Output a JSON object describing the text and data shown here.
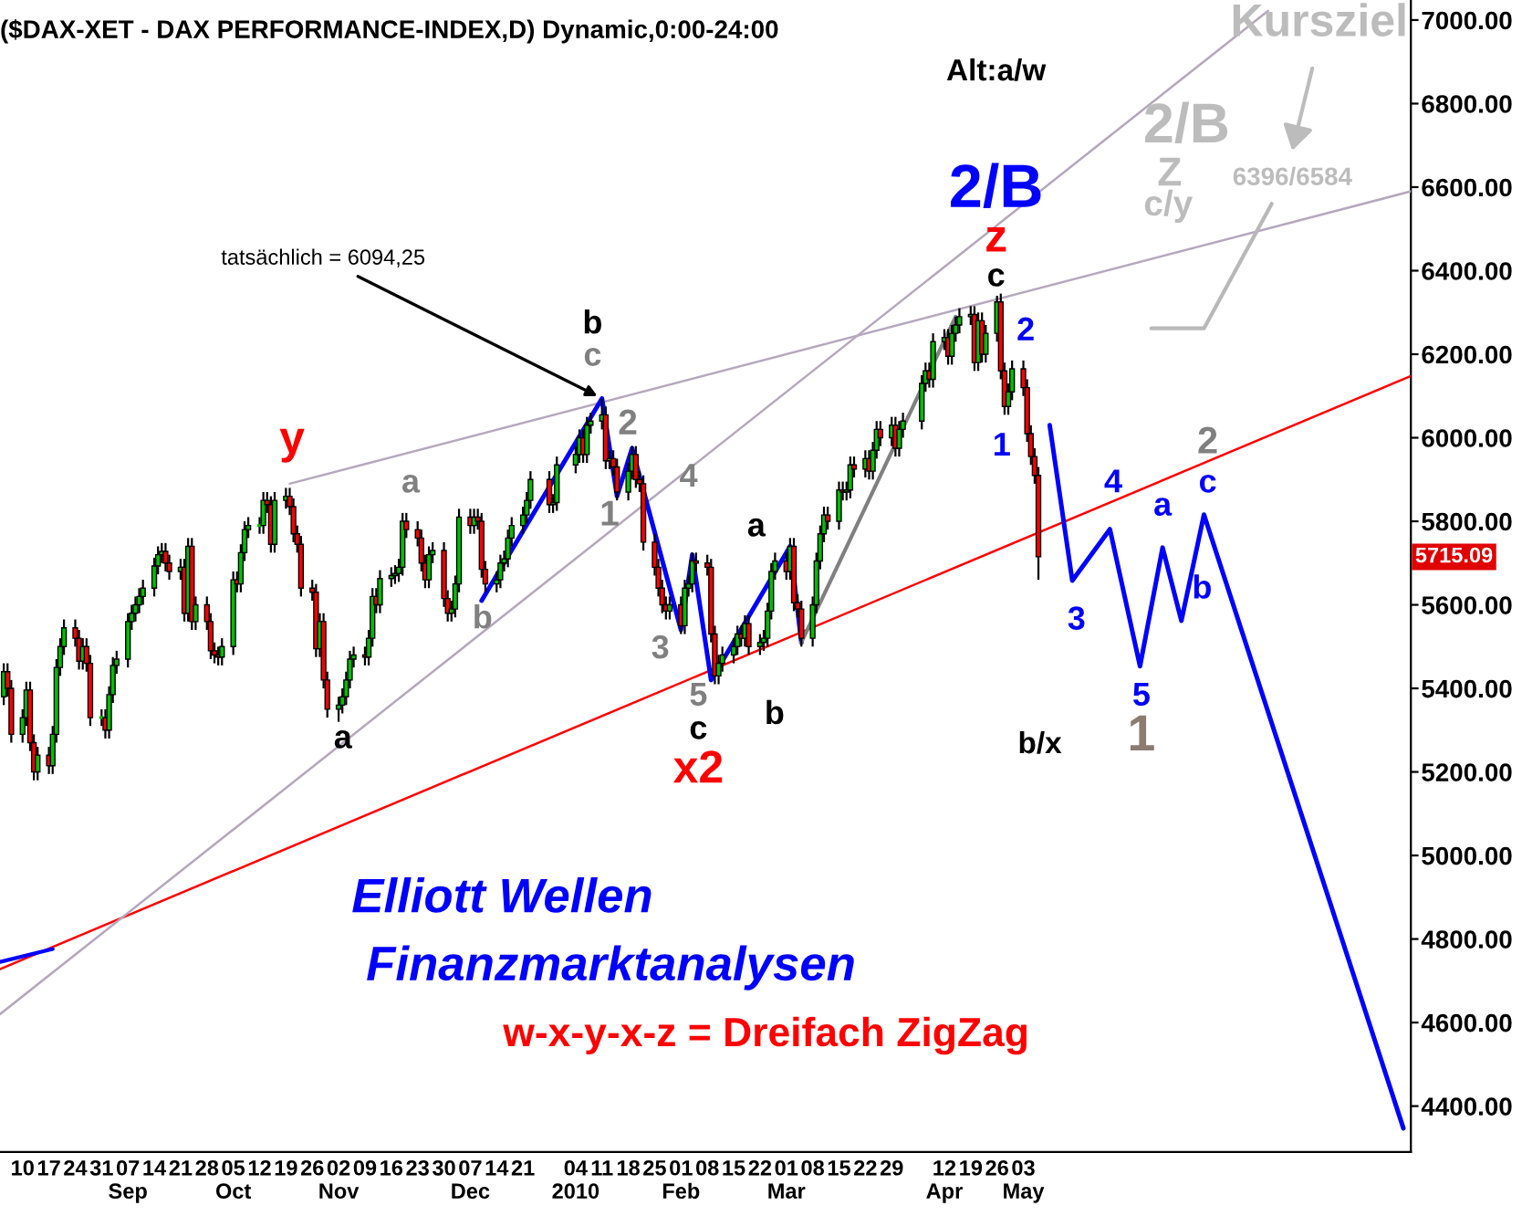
{
  "chart_data": {
    "type": "candlestick",
    "title": "($DAX-XET - DAX PERFORMANCE-INDEX,D) Dynamic,0:00-24:00",
    "colors": [
      "#00c000",
      "#ff0000",
      "#ff0000",
      "#00c000",
      "#00c000",
      "#ff0000",
      "#ff0000",
      "#00c000",
      "#ff0000",
      "#00c000",
      "#00c000",
      "#00c000",
      "#00c000",
      "#ff0000",
      "#ff0000",
      "#00c000",
      "#ff0000",
      "#ff0000",
      "#00c000",
      "#ff0000",
      "#00c000",
      "#00c000",
      "#00c000",
      "#00c000",
      "#00c000",
      "#00c000",
      "#00c000",
      "#00c000",
      "#00c000",
      "#00c000",
      "#00c000",
      "#ff0000",
      "#ff0000",
      "#00c000",
      "#ff0000",
      "#00c000",
      "#ff0000",
      "#00c000",
      "#ff0000",
      "#ff0000",
      "#ff0000",
      "#ff0000",
      "#00c000",
      "#00c000",
      "#ff0000",
      "#00c000",
      "#00c000",
      "#00c000",
      "#00c000",
      "#00c000",
      "#ff0000",
      "#ff0000",
      "#00c000",
      "#00c000",
      "#ff0000",
      "#ff0000",
      "#ff0000",
      "#ff0000",
      "#ff0000",
      "#ff0000",
      "#00c000",
      "#ff0000",
      "#ff0000",
      "#00c000",
      "#00c000",
      "#00c000",
      "#00c000",
      "#00c000",
      "#ff0000",
      "#00c000",
      "#00c000",
      "#ff0000",
      "#00c000",
      "#00c000",
      "#00c000",
      "#00c000",
      "#00c000",
      "#ff0000",
      "#ff0000",
      "#ff0000",
      "#ff0000",
      "#00c000",
      "#00c000",
      "#ff0000",
      "#ff0000",
      "#00c000",
      "#00c000",
      "#00c000",
      "#ff0000",
      "#00c000",
      "#ff0000",
      "#ff0000",
      "#ff0000",
      "#00c000",
      "#00c000",
      "#00c000",
      "#00c000",
      "#00c000",
      "#00c000",
      "#00c000",
      "#00c000",
      "#ff0000",
      "#00c000",
      "#00c000",
      "#00c000",
      "#00c000",
      "#ff0000",
      "#00c000",
      "#00c000",
      "#00c000",
      "#ff0000",
      "#00c000",
      "#ff0000",
      "#ff0000",
      "#00c000",
      "#00c000",
      "#ff0000",
      "#ff0000",
      "#ff0000",
      "#ff0000",
      "#ff0000",
      "#ff0000",
      "#ff0000",
      "#00c000",
      "#ff0000",
      "#00c000",
      "#00c000",
      "#00c000",
      "#ff0000",
      "#ff0000",
      "#ff0000",
      "#ff0000",
      "#00c000",
      "#00c000",
      "#00c000",
      "#00c000",
      "#ff0000",
      "#00c000",
      "#ff0000",
      "#00c000",
      "#00c000",
      "#00c000",
      "#00c000",
      "#00c000",
      "#ff0000",
      "#00c000",
      "#ff0000",
      "#ff0000",
      "#ff0000",
      "#00c000",
      "#00c000",
      "#00c000",
      "#00c000",
      "#ff0000",
      "#00c000",
      "#ff0000",
      "#00c000",
      "#00c000",
      "#ff0000",
      "#00c000",
      "#ff0000",
      "#00c000",
      "#00c000",
      "#ff0000",
      "#00c000",
      "#ff0000",
      "#00c000",
      "#00c000",
      "#00c000",
      "#00c000",
      "#ff0000",
      "#00c000",
      "#00c000",
      "#ff0000",
      "#00c000",
      "#00c000",
      "#00c000",
      "#00c000",
      "#ff0000",
      "#00c000",
      "#ff0000",
      "#00c000",
      "#00c000",
      "#ff0000",
      "#ff0000",
      "#00c000",
      "#00c000",
      "#ff0000",
      "#ff0000",
      "#ff0000",
      "#ff0000",
      "#ff0000"
    ],
    "x": [
      "2009-08-05",
      "2009-08-06",
      "2009-08-07",
      "2009-08-10",
      "2009-08-11",
      "2009-08-12",
      "2009-08-13",
      "2009-08-14",
      "2009-08-17",
      "2009-08-18",
      "2009-08-19",
      "2009-08-20",
      "2009-08-21",
      "2009-08-24",
      "2009-08-25",
      "2009-08-26",
      "2009-08-27",
      "2009-08-28",
      "2009-08-31",
      "2009-09-01",
      "2009-09-02",
      "2009-09-03",
      "2009-09-04",
      "2009-09-07",
      "2009-09-08",
      "2009-09-09",
      "2009-09-10",
      "2009-09-11",
      "2009-09-14",
      "2009-09-15",
      "2009-09-16",
      "2009-09-17",
      "2009-09-18",
      "2009-09-21",
      "2009-09-22",
      "2009-09-23",
      "2009-09-24",
      "2009-09-25",
      "2009-09-28",
      "2009-09-29",
      "2009-09-30",
      "2009-10-01",
      "2009-10-02",
      "2009-10-05",
      "2009-10-06",
      "2009-10-07",
      "2009-10-08",
      "2009-10-09",
      "2009-10-12",
      "2009-10-13",
      "2009-10-14",
      "2009-10-15",
      "2009-10-16",
      "2009-10-19",
      "2009-10-20",
      "2009-10-21",
      "2009-10-22",
      "2009-10-23",
      "2009-10-26",
      "2009-10-27",
      "2009-10-28",
      "2009-10-29",
      "2009-10-30",
      "2009-11-02",
      "2009-11-03",
      "2009-11-04",
      "2009-11-05",
      "2009-11-06",
      "2009-11-09",
      "2009-11-10",
      "2009-11-11",
      "2009-11-12",
      "2009-11-13",
      "2009-11-16",
      "2009-11-17",
      "2009-11-18",
      "2009-11-19",
      "2009-11-20",
      "2009-11-23",
      "2009-11-24",
      "2009-11-25",
      "2009-11-26",
      "2009-11-27",
      "2009-11-30",
      "2009-12-01",
      "2009-12-02",
      "2009-12-03",
      "2009-12-04",
      "2009-12-07",
      "2009-12-08",
      "2009-12-09",
      "2009-12-10",
      "2009-12-11",
      "2009-12-14",
      "2009-12-15",
      "2009-12-16",
      "2009-12-17",
      "2009-12-18",
      "2009-12-21",
      "2009-12-22",
      "2009-12-23",
      "2009-12-28",
      "2009-12-29",
      "2009-12-30",
      "2010-01-04",
      "2010-01-05",
      "2010-01-06",
      "2010-01-07",
      "2010-01-08",
      "2010-01-11",
      "2010-01-12",
      "2010-01-13",
      "2010-01-14",
      "2010-01-15",
      "2010-01-18",
      "2010-01-19",
      "2010-01-20",
      "2010-01-21",
      "2010-01-22",
      "2010-01-25",
      "2010-01-26",
      "2010-01-27",
      "2010-01-28",
      "2010-01-29",
      "2010-02-01",
      "2010-02-02",
      "2010-02-03",
      "2010-02-04",
      "2010-02-05",
      "2010-02-08",
      "2010-02-09",
      "2010-02-10",
      "2010-02-11",
      "2010-02-12",
      "2010-02-15",
      "2010-02-16",
      "2010-02-17",
      "2010-02-18",
      "2010-02-19",
      "2010-02-22",
      "2010-02-23",
      "2010-02-24",
      "2010-02-25",
      "2010-02-26",
      "2010-03-01",
      "2010-03-02",
      "2010-03-03",
      "2010-03-04",
      "2010-03-05",
      "2010-03-08",
      "2010-03-09",
      "2010-03-10",
      "2010-03-11",
      "2010-03-12",
      "2010-03-15",
      "2010-03-16",
      "2010-03-17",
      "2010-03-18",
      "2010-03-19",
      "2010-03-22",
      "2010-03-23",
      "2010-03-24",
      "2010-03-25",
      "2010-03-26",
      "2010-03-29",
      "2010-03-30",
      "2010-03-31",
      "2010-04-01",
      "2010-04-06",
      "2010-04-07",
      "2010-04-08",
      "2010-04-09",
      "2010-04-12",
      "2010-04-13",
      "2010-04-14",
      "2010-04-15",
      "2010-04-16",
      "2010-04-19",
      "2010-04-20",
      "2010-04-21",
      "2010-04-22",
      "2010-04-23",
      "2010-04-26",
      "2010-04-27",
      "2010-04-28",
      "2010-04-29",
      "2010-04-30",
      "2010-05-03",
      "2010-05-04",
      "2010-05-05",
      "2010-05-06",
      "2010-05-07"
    ],
    "ohlc": [
      [
        5380,
        5460,
        5360,
        5440
      ],
      [
        5440,
        5460,
        5380,
        5400
      ],
      [
        5400,
        5420,
        5270,
        5290
      ],
      [
        5290,
        5350,
        5270,
        5330
      ],
      [
        5330,
        5416,
        5310,
        5396
      ],
      [
        5396,
        5416,
        5250,
        5270
      ],
      [
        5270,
        5290,
        5180,
        5200
      ],
      [
        5200,
        5260,
        5180,
        5240
      ],
      [
        5240,
        5260,
        5195,
        5215
      ],
      [
        5215,
        5310,
        5195,
        5290
      ],
      [
        5290,
        5470,
        5270,
        5450
      ],
      [
        5450,
        5520,
        5430,
        5500
      ],
      [
        5500,
        5565,
        5480,
        5545
      ],
      [
        5545,
        5565,
        5500,
        5520
      ],
      [
        5520,
        5540,
        5445,
        5465
      ],
      [
        5465,
        5520,
        5445,
        5500
      ],
      [
        5500,
        5520,
        5440,
        5460
      ],
      [
        5460,
        5480,
        5310,
        5330
      ],
      [
        5330,
        5350,
        5310,
        5330
      ],
      [
        5330,
        5350,
        5280,
        5300
      ],
      [
        5300,
        5405,
        5280,
        5385
      ],
      [
        5385,
        5475,
        5365,
        5455
      ],
      [
        5455,
        5490,
        5435,
        5470
      ],
      [
        5470,
        5580,
        5450,
        5560
      ],
      [
        5560,
        5600,
        5540,
        5580
      ],
      [
        5580,
        5620,
        5560,
        5600
      ],
      [
        5600,
        5640,
        5580,
        5620
      ],
      [
        5620,
        5660,
        5600,
        5640
      ],
      [
        5640,
        5713,
        5620,
        5693
      ],
      [
        5693,
        5740,
        5673,
        5720
      ],
      [
        5720,
        5748,
        5700,
        5728
      ],
      [
        5728,
        5748,
        5680,
        5700
      ],
      [
        5700,
        5720,
        5660,
        5680
      ],
      [
        5680,
        5710,
        5660,
        5690
      ],
      [
        5690,
        5710,
        5560,
        5580
      ],
      [
        5580,
        5760,
        5560,
        5740
      ],
      [
        5740,
        5760,
        5540,
        5560
      ],
      [
        5560,
        5620,
        5540,
        5600
      ],
      [
        5600,
        5620,
        5540,
        5560
      ],
      [
        5560,
        5580,
        5470,
        5490
      ],
      [
        5490,
        5510,
        5460,
        5480
      ],
      [
        5480,
        5500,
        5455,
        5475
      ],
      [
        5475,
        5520,
        5455,
        5500
      ],
      [
        5500,
        5680,
        5480,
        5660
      ],
      [
        5660,
        5680,
        5630,
        5650
      ],
      [
        5650,
        5745,
        5630,
        5725
      ],
      [
        5725,
        5800,
        5705,
        5780
      ],
      [
        5780,
        5810,
        5760,
        5790
      ],
      [
        5790,
        5810,
        5770,
        5790
      ],
      [
        5790,
        5870,
        5770,
        5850
      ],
      [
        5850,
        5870,
        5820,
        5840
      ],
      [
        5840,
        5860,
        5725,
        5745
      ],
      [
        5745,
        5870,
        5725,
        5850
      ],
      [
        5850,
        5880,
        5830,
        5860
      ],
      [
        5860,
        5880,
        5815,
        5835
      ],
      [
        5835,
        5855,
        5750,
        5770
      ],
      [
        5770,
        5790,
        5725,
        5745
      ],
      [
        5745,
        5765,
        5620,
        5640
      ],
      [
        5640,
        5660,
        5610,
        5630
      ],
      [
        5630,
        5650,
        5475,
        5495
      ],
      [
        5495,
        5580,
        5475,
        5560
      ],
      [
        5560,
        5580,
        5400,
        5420
      ],
      [
        5420,
        5440,
        5330,
        5350
      ],
      [
        5350,
        5380,
        5320,
        5360
      ],
      [
        5360,
        5400,
        5340,
        5380
      ],
      [
        5380,
        5440,
        5360,
        5420
      ],
      [
        5420,
        5490,
        5400,
        5470
      ],
      [
        5470,
        5500,
        5450,
        5480
      ],
      [
        5480,
        5500,
        5455,
        5475
      ],
      [
        5475,
        5540,
        5455,
        5520
      ],
      [
        5520,
        5640,
        5500,
        5620
      ],
      [
        5620,
        5640,
        5580,
        5600
      ],
      [
        5600,
        5683,
        5580,
        5663
      ],
      [
        5663,
        5690,
        5643,
        5670
      ],
      [
        5670,
        5695,
        5650,
        5675
      ],
      [
        5675,
        5710,
        5655,
        5690
      ],
      [
        5690,
        5820,
        5670,
        5800
      ],
      [
        5800,
        5820,
        5760,
        5780
      ],
      [
        5780,
        5800,
        5740,
        5760
      ],
      [
        5760,
        5780,
        5680,
        5700
      ],
      [
        5700,
        5720,
        5640,
        5660
      ],
      [
        5660,
        5740,
        5640,
        5720
      ],
      [
        5720,
        5750,
        5700,
        5730
      ],
      [
        5730,
        5750,
        5595,
        5615
      ],
      [
        5615,
        5635,
        5560,
        5580
      ],
      [
        5580,
        5610,
        5560,
        5590
      ],
      [
        5590,
        5670,
        5570,
        5650
      ],
      [
        5650,
        5830,
        5630,
        5810
      ],
      [
        5810,
        5830,
        5770,
        5790
      ],
      [
        5790,
        5830,
        5770,
        5810
      ],
      [
        5810,
        5830,
        5780,
        5800
      ],
      [
        5800,
        5820,
        5665,
        5685
      ],
      [
        5685,
        5705,
        5630,
        5650
      ],
      [
        5650,
        5680,
        5630,
        5660
      ],
      [
        5660,
        5720,
        5640,
        5700
      ],
      [
        5700,
        5730,
        5680,
        5710
      ],
      [
        5710,
        5780,
        5690,
        5760
      ],
      [
        5760,
        5810,
        5740,
        5790
      ],
      [
        5790,
        5835,
        5770,
        5815
      ],
      [
        5815,
        5870,
        5795,
        5850
      ],
      [
        5850,
        5920,
        5830,
        5900
      ],
      [
        5900,
        5920,
        5820,
        5840
      ],
      [
        5840,
        5865,
        5820,
        5845
      ],
      [
        5845,
        5955,
        5825,
        5935
      ],
      [
        5935,
        5980,
        5915,
        5960
      ],
      [
        5960,
        6020,
        5940,
        6000
      ],
      [
        6000,
        6020,
        5940,
        5960
      ],
      [
        5960,
        6050,
        5940,
        6030
      ],
      [
        6030,
        6060,
        6010,
        6040
      ],
      [
        6040,
        6094,
        6020,
        6055
      ],
      [
        6055,
        6075,
        5925,
        5945
      ],
      [
        5945,
        5970,
        5925,
        5950
      ],
      [
        5950,
        5970,
        5910,
        5930
      ],
      [
        5930,
        5950,
        5850,
        5870
      ],
      [
        5870,
        5940,
        5850,
        5920
      ],
      [
        5920,
        5980,
        5900,
        5960
      ],
      [
        5960,
        5980,
        5880,
        5900
      ],
      [
        5900,
        5920,
        5870,
        5890
      ],
      [
        5890,
        5910,
        5730,
        5750
      ],
      [
        5750,
        5770,
        5670,
        5690
      ],
      [
        5690,
        5710,
        5620,
        5640
      ],
      [
        5640,
        5660,
        5580,
        5600
      ],
      [
        5600,
        5620,
        5565,
        5585
      ],
      [
        5585,
        5620,
        5565,
        5600
      ],
      [
        5600,
        5620,
        5530,
        5550
      ],
      [
        5550,
        5660,
        5530,
        5640
      ],
      [
        5640,
        5670,
        5620,
        5650
      ],
      [
        5650,
        5725,
        5630,
        5705
      ],
      [
        5705,
        5725,
        5680,
        5700
      ],
      [
        5700,
        5720,
        5670,
        5690
      ],
      [
        5690,
        5710,
        5510,
        5530
      ],
      [
        5530,
        5550,
        5410,
        5430
      ],
      [
        5430,
        5480,
        5410,
        5460
      ],
      [
        5460,
        5500,
        5440,
        5480
      ],
      [
        5480,
        5520,
        5460,
        5500
      ],
      [
        5500,
        5550,
        5480,
        5530
      ],
      [
        5530,
        5550,
        5500,
        5520
      ],
      [
        5520,
        5575,
        5500,
        5555
      ],
      [
        5555,
        5575,
        5480,
        5500
      ],
      [
        5500,
        5530,
        5480,
        5510
      ],
      [
        5510,
        5540,
        5490,
        5520
      ],
      [
        5520,
        5605,
        5500,
        5585
      ],
      [
        5585,
        5700,
        5565,
        5680
      ],
      [
        5680,
        5725,
        5660,
        5705
      ],
      [
        5705,
        5725,
        5660,
        5680
      ],
      [
        5680,
        5760,
        5660,
        5740
      ],
      [
        5740,
        5760,
        5585,
        5605
      ],
      [
        5605,
        5625,
        5570,
        5590
      ],
      [
        5590,
        5610,
        5500,
        5520
      ],
      [
        5520,
        5620,
        5500,
        5600
      ],
      [
        5600,
        5725,
        5580,
        5705
      ],
      [
        5705,
        5790,
        5685,
        5770
      ],
      [
        5770,
        5835,
        5750,
        5815
      ],
      [
        5815,
        5835,
        5780,
        5800
      ],
      [
        5800,
        5895,
        5780,
        5875
      ],
      [
        5875,
        5895,
        5850,
        5870
      ],
      [
        5870,
        5895,
        5850,
        5875
      ],
      [
        5875,
        5955,
        5855,
        5935
      ],
      [
        5935,
        5955,
        5905,
        5925
      ],
      [
        5925,
        5970,
        5905,
        5950
      ],
      [
        5950,
        5970,
        5900,
        5920
      ],
      [
        5920,
        5990,
        5900,
        5970
      ],
      [
        5970,
        6040,
        5950,
        6020
      ],
      [
        6020,
        6040,
        5980,
        6000
      ],
      [
        6000,
        6050,
        5980,
        6030
      ],
      [
        6030,
        6050,
        5955,
        5975
      ],
      [
        5975,
        6040,
        5955,
        6020
      ],
      [
        6020,
        6060,
        6000,
        6040
      ],
      [
        6040,
        6150,
        6020,
        6130
      ],
      [
        6130,
        6180,
        6110,
        6160
      ],
      [
        6160,
        6180,
        6120,
        6140
      ],
      [
        6140,
        6250,
        6120,
        6230
      ],
      [
        6230,
        6260,
        6210,
        6240
      ],
      [
        6240,
        6260,
        6175,
        6195
      ],
      [
        6195,
        6270,
        6175,
        6250
      ],
      [
        6250,
        6290,
        6230,
        6270
      ],
      [
        6270,
        6310,
        6250,
        6290
      ],
      [
        6290,
        6315,
        6270,
        6295
      ],
      [
        6295,
        6315,
        6160,
        6180
      ],
      [
        6180,
        6300,
        6160,
        6280
      ],
      [
        6280,
        6300,
        6180,
        6200
      ],
      [
        6200,
        6270,
        6180,
        6250
      ],
      [
        6250,
        6340,
        6230,
        6325
      ],
      [
        6325,
        6345,
        6140,
        6160
      ],
      [
        6160,
        6180,
        6055,
        6075
      ],
      [
        6075,
        6130,
        6055,
        6110
      ],
      [
        6110,
        6185,
        6090,
        6165
      ],
      [
        6165,
        6185,
        6100,
        6120
      ],
      [
        6120,
        6140,
        5990,
        6010
      ],
      [
        6010,
        6030,
        5935,
        5955
      ],
      [
        5955,
        5975,
        5890,
        5910
      ],
      [
        5910,
        5930,
        5660,
        5715
      ]
    ],
    "series": [
      {
        "type": "line",
        "color": "#ff0000",
        "x": [
          "2009-08-04",
          "2010-08-14"
        ],
        "values": [
          4728,
          6148
        ]
      },
      {
        "type": "line",
        "color": "#b4a8bc",
        "x": [
          "2009-10-20",
          "2010-08-14"
        ],
        "values": [
          5890,
          6590
        ]
      },
      {
        "type": "line",
        "color": "#b4a8bc",
        "x": [
          "2009-08-04",
          "2010-07-07"
        ],
        "values": [
          4620,
          7022
        ]
      },
      {
        "type": "line",
        "color": "#0000ff",
        "x": [
          "2009-08-04",
          "2009-08-18"
        ],
        "values": [
          4745,
          4776
        ]
      },
      {
        "type": "line",
        "color": "#0000ff",
        "x": [
          "2009-12-10",
          "2010-01-11",
          "2010-01-15",
          "2010-01-19",
          "2010-02-01",
          "2010-02-04",
          "2010-02-09",
          "2010-03-02",
          "2010-03-05"
        ],
        "values": [
          5610,
          6094,
          5860,
          5975,
          5540,
          5720,
          5420,
          5740,
          5510
        ]
      },
      {
        "type": "line",
        "color": "#808080",
        "x": [
          "2010-03-05",
          "2010-04-15"
        ],
        "values": [
          5510,
          6290
        ]
      },
      {
        "type": "line",
        "color": "#0000ff",
        "x": [
          "2010-05-10",
          "2010-05-16",
          "2010-05-26",
          "2010-06-03",
          "2010-06-09",
          "2010-06-14",
          "2010-06-20",
          "2010-08-12"
        ],
        "values": [
          6030,
          5658,
          5781,
          5453,
          5737,
          5562,
          5816,
          4347
        ]
      },
      {
        "type": "line",
        "color": "#b8b8b8",
        "x": [
          "2010-06-06",
          "2010-06-20",
          "2010-07-08"
        ],
        "values": [
          6262,
          6262,
          6560
        ]
      }
    ],
    "xlim": [
      "2009-08-04",
      "2010-08-14"
    ],
    "xticks": [
      {
        "value": "2009-08-10",
        "label": "10"
      },
      {
        "value": "2009-08-17",
        "label": "17"
      },
      {
        "value": "2009-08-24",
        "label": "24"
      },
      {
        "value": "2009-08-31",
        "label": "31"
      },
      {
        "value": "2009-09-07",
        "label": "07\nSep"
      },
      {
        "value": "2009-09-14",
        "label": "14"
      },
      {
        "value": "2009-09-21",
        "label": "21"
      },
      {
        "value": "2009-09-28",
        "label": "28"
      },
      {
        "value": "2009-10-05",
        "label": "05\nOct"
      },
      {
        "value": "2009-10-12",
        "label": "12"
      },
      {
        "value": "2009-10-19",
        "label": "19"
      },
      {
        "value": "2009-10-26",
        "label": "26"
      },
      {
        "value": "2009-11-02",
        "label": "02\nNov"
      },
      {
        "value": "2009-11-09",
        "label": "09"
      },
      {
        "value": "2009-11-16",
        "label": "16"
      },
      {
        "value": "2009-11-23",
        "label": "23"
      },
      {
        "value": "2009-11-30",
        "label": "30"
      },
      {
        "value": "2009-12-07",
        "label": "07\nDec"
      },
      {
        "value": "2009-12-14",
        "label": "14"
      },
      {
        "value": "2009-12-21",
        "label": "21"
      },
      {
        "value": "2010-01-04",
        "label": "04\n2010"
      },
      {
        "value": "2010-01-11",
        "label": "11"
      },
      {
        "value": "2010-01-18",
        "label": "18"
      },
      {
        "value": "2010-01-25",
        "label": "25"
      },
      {
        "value": "2010-02-01",
        "label": "01\nFeb"
      },
      {
        "value": "2010-02-08",
        "label": "08"
      },
      {
        "value": "2010-02-15",
        "label": "15"
      },
      {
        "value": "2010-02-22",
        "label": "22"
      },
      {
        "value": "2010-03-01",
        "label": "01\nMar"
      },
      {
        "value": "2010-03-08",
        "label": "08"
      },
      {
        "value": "2010-03-15",
        "label": "15"
      },
      {
        "value": "2010-03-22",
        "label": "22"
      },
      {
        "value": "2010-03-29",
        "label": "29"
      },
      {
        "value": "2010-04-12",
        "label": "12\nApr"
      },
      {
        "value": "2010-04-19",
        "label": "19"
      },
      {
        "value": "2010-04-26",
        "label": "26"
      },
      {
        "value": "2010-05-03",
        "label": "03\nMay"
      }
    ],
    "ylim": [
      4290,
      7048
    ],
    "yticks": [
      {
        "value": 4400,
        "label": "4400.00"
      },
      {
        "value": 4600,
        "label": "4600.00"
      },
      {
        "value": 4800,
        "label": "4800.00"
      },
      {
        "value": 5000,
        "label": "5000.00"
      },
      {
        "value": 5200,
        "label": "5200.00"
      },
      {
        "value": 5400,
        "label": "5400.00"
      },
      {
        "value": 5600,
        "label": "5600.00"
      },
      {
        "value": 5800,
        "label": "5800.00"
      },
      {
        "value": 6000,
        "label": "6000.00"
      },
      {
        "value": 6200,
        "label": "6200.00"
      },
      {
        "value": 6400,
        "label": "6400.00"
      },
      {
        "value": 6600,
        "label": "6600.00"
      },
      {
        "value": 6800,
        "label": "6800.00"
      },
      {
        "value": 7000,
        "label": "7000.00"
      }
    ],
    "grid": false,
    "annotations": [
      "5715.09",
      "y",
      "a",
      "a",
      "b",
      "c",
      {
        "text": "tatsächlich = 6094,25",
        "x": "2010-01-11",
        "y": 6094.25
      },
      "2",
      "1",
      "b",
      "4",
      "3",
      "5",
      "c",
      "x2",
      "a",
      "b",
      "c",
      "z",
      "2/B",
      "Alt:a/w",
      "2",
      "1",
      "3",
      "4",
      "5",
      "a",
      "b",
      "c",
      "2",
      "1",
      "b/x",
      "2/B",
      "Z",
      "c/y",
      "6396/6584",
      "Kursziel",
      "Elliott Wellen",
      "Finanzmarktanalysen",
      "w-x-y-x-z = Dreifach ZigZag"
    ]
  }
}
